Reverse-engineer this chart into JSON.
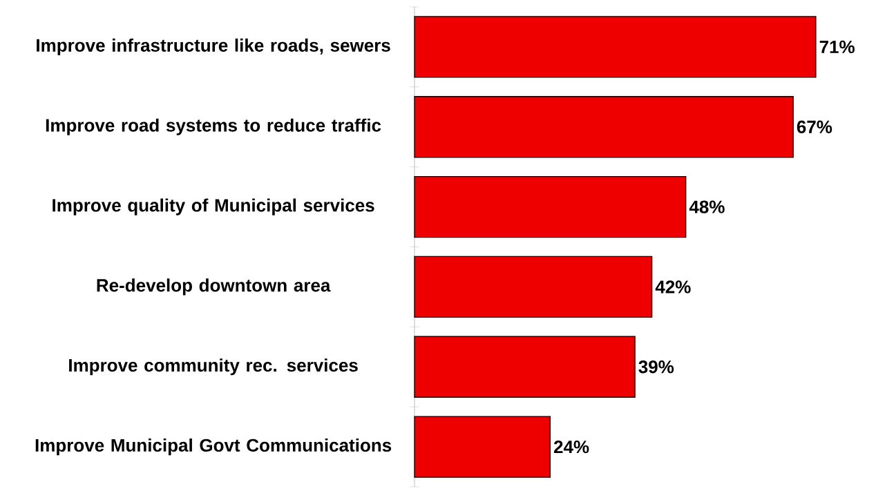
{
  "chart_data": {
    "type": "bar",
    "orientation": "horizontal",
    "categories": [
      "Improve infrastructure like roads, sewers",
      "Improve road systems to reduce traffic",
      "Improve quality of Municipal services",
      "Re-develop downtown area",
      "Improve community rec. services",
      "Improve Municipal Govt Communications"
    ],
    "values": [
      71,
      67,
      48,
      42,
      39,
      24
    ],
    "value_labels": [
      "71%",
      "67%",
      "48%",
      "42%",
      "39%",
      "24%"
    ],
    "color": "#ee0000"
  }
}
